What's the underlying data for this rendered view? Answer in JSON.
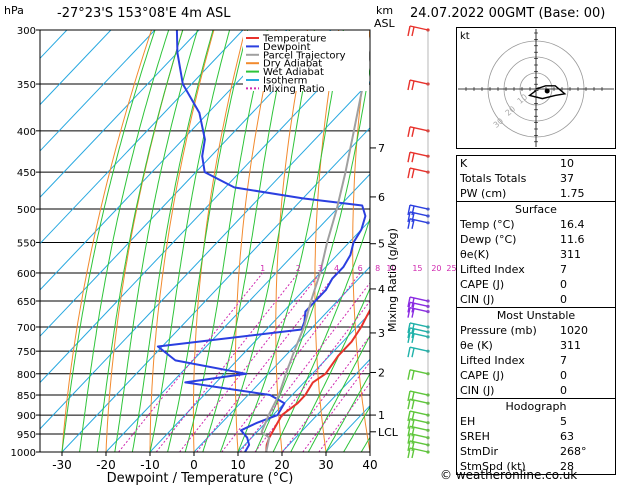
{
  "header": {
    "hpa_label": "hPa",
    "location": "-27°23'S  153°08'E  4m  ASL",
    "km_label": "km",
    "asl_label": "ASL",
    "datetime": "24.07.2022  00GMT  (Base: 00)"
  },
  "legend": {
    "items": [
      {
        "label": "Temperature",
        "color": "#e8322c",
        "dash": ""
      },
      {
        "label": "Dewpoint",
        "color": "#2b3fe0",
        "dash": ""
      },
      {
        "label": "Parcel Trajectory",
        "color": "#a0a0a0",
        "dash": ""
      },
      {
        "label": "Dry Adiabat",
        "color": "#f28a2e",
        "dash": ""
      },
      {
        "label": "Wet Adiabat",
        "color": "#2ec43a",
        "dash": ""
      },
      {
        "label": "Isotherm",
        "color": "#27a8e0",
        "dash": ""
      },
      {
        "label": "Mixing Ratio",
        "color": "#d02ab0",
        "dash": "2,2"
      }
    ]
  },
  "chart_data": {
    "type": "line",
    "title": "-27°23'S  153°08'E  4m  ASL",
    "xlabel": "Dewpoint / Temperature (°C)",
    "ylabel": "hPa",
    "y2label": "Mixing Ratio (g/kg)",
    "xlim": [
      -35,
      40
    ],
    "ylim": [
      1000,
      300
    ],
    "y_scale": "log",
    "x_ticks": [
      "-30",
      "-20",
      "-10",
      "0",
      "10",
      "20",
      "30",
      "40"
    ],
    "pressure_ticks": [
      "300",
      "350",
      "400",
      "450",
      "500",
      "550",
      "600",
      "650",
      "700",
      "750",
      "800",
      "850",
      "900",
      "950",
      "1000"
    ],
    "km_ticks": [
      {
        "label": "7",
        "p": 420
      },
      {
        "label": "6",
        "p": 483
      },
      {
        "label": "5",
        "p": 552
      },
      {
        "label": "4",
        "p": 628
      },
      {
        "label": "3",
        "p": 712
      },
      {
        "label": "2",
        "p": 797
      },
      {
        "label": "1",
        "p": 900
      },
      {
        "label": "LCL",
        "p": 944
      }
    ],
    "mixing_ratio_labels": [
      "1",
      "2",
      "3",
      "4",
      "6",
      "8",
      "10",
      "15",
      "20",
      "25"
    ],
    "series": [
      {
        "name": "Temperature",
        "color": "#e8322c",
        "points": [
          [
            16.4,
            1000
          ],
          [
            15,
            980
          ],
          [
            14,
            960
          ],
          [
            13,
            930
          ],
          [
            12,
            900
          ],
          [
            13,
            870
          ],
          [
            13,
            850
          ],
          [
            12,
            820
          ],
          [
            13,
            800
          ],
          [
            12,
            760
          ],
          [
            12,
            730
          ],
          [
            11,
            700
          ],
          [
            10,
            680
          ],
          [
            9,
            660
          ],
          [
            6,
            630
          ],
          [
            4,
            610
          ],
          [
            0,
            580
          ],
          [
            -4,
            550
          ],
          [
            -8,
            520
          ],
          [
            -12,
            500
          ],
          [
            -11,
            490
          ],
          [
            -13,
            480
          ],
          [
            -13,
            460
          ],
          [
            -15,
            430
          ],
          [
            -16,
            410
          ],
          [
            -19,
            390
          ],
          [
            -25,
            360
          ],
          [
            -32,
            330
          ],
          [
            -40,
            300
          ]
        ]
      },
      {
        "name": "Dewpoint",
        "color": "#2b3fe0",
        "points": [
          [
            11.6,
            1000
          ],
          [
            11,
            980
          ],
          [
            9,
            960
          ],
          [
            6,
            940
          ],
          [
            8,
            920
          ],
          [
            11,
            900
          ],
          [
            10,
            870
          ],
          [
            5,
            850
          ],
          [
            -17,
            820
          ],
          [
            -5,
            800
          ],
          [
            -24,
            770
          ],
          [
            -31,
            740
          ],
          [
            -2,
            705
          ],
          [
            -3,
            690
          ],
          [
            -5,
            670
          ],
          [
            -5,
            650
          ],
          [
            -5,
            630
          ],
          [
            -6,
            610
          ],
          [
            -6,
            590
          ],
          [
            -7,
            570
          ],
          [
            -9,
            550
          ],
          [
            -10,
            530
          ],
          [
            -12,
            510
          ],
          [
            -15,
            495
          ],
          [
            -30,
            485
          ],
          [
            -48,
            470
          ],
          [
            -58,
            450
          ],
          [
            -62,
            430
          ],
          [
            -65,
            410
          ],
          [
            -72,
            380
          ],
          [
            -82,
            350
          ],
          [
            -90,
            320
          ],
          [
            -95,
            300
          ]
        ]
      },
      {
        "name": "Parcel Trajectory",
        "color": "#a0a0a0",
        "points": [
          [
            16.4,
            1000
          ],
          [
            14,
            960
          ],
          [
            11,
            944
          ],
          [
            9,
            900
          ],
          [
            7,
            850
          ],
          [
            4,
            800
          ],
          [
            1,
            750
          ],
          [
            -2,
            700
          ],
          [
            -6,
            650
          ],
          [
            -10,
            600
          ],
          [
            -15,
            550
          ],
          [
            -20,
            500
          ],
          [
            -26,
            450
          ],
          [
            -33,
            400
          ],
          [
            -41,
            350
          ],
          [
            -50,
            300
          ]
        ]
      }
    ]
  },
  "indices": {
    "top": [
      {
        "label": "K",
        "value": "10"
      },
      {
        "label": "Totals Totals",
        "value": "37"
      },
      {
        "label": "PW (cm)",
        "value": "1.75"
      }
    ],
    "surface": {
      "title": "Surface",
      "rows": [
        {
          "label": "Temp (°C)",
          "value": "16.4"
        },
        {
          "label": "Dewp (°C)",
          "value": "11.6"
        },
        {
          "label": "θe(K)",
          "value": "311"
        },
        {
          "label": "Lifted Index",
          "value": "7"
        },
        {
          "label": "CAPE (J)",
          "value": "0"
        },
        {
          "label": "CIN (J)",
          "value": "0"
        }
      ]
    },
    "most_unstable": {
      "title": "Most Unstable",
      "rows": [
        {
          "label": "Pressure (mb)",
          "value": "1020"
        },
        {
          "label": "θe (K)",
          "value": "311"
        },
        {
          "label": "Lifted Index",
          "value": "7"
        },
        {
          "label": "CAPE (J)",
          "value": "0"
        },
        {
          "label": "CIN (J)",
          "value": "0"
        }
      ]
    },
    "hodograph": {
      "title": "Hodograph",
      "rows": [
        {
          "label": "EH",
          "value": "5"
        },
        {
          "label": "SREH",
          "value": "63"
        },
        {
          "label": "StmDir",
          "value": "268°"
        },
        {
          "label": "StmSpd (kt)",
          "value": "28"
        }
      ]
    }
  },
  "hodo": {
    "unit_label": "kt",
    "ring_labels": [
      "10",
      "20",
      "30"
    ],
    "trace": [
      [
        0,
        0
      ],
      [
        6,
        -2
      ],
      [
        12,
        -2
      ],
      [
        18,
        3
      ],
      [
        12,
        4
      ],
      [
        4,
        6
      ],
      [
        -4,
        4
      ],
      [
        0,
        1
      ]
    ],
    "storm": [
      20,
      -4
    ]
  },
  "footer": {
    "copyright": "© weatheronline.co.uk"
  }
}
